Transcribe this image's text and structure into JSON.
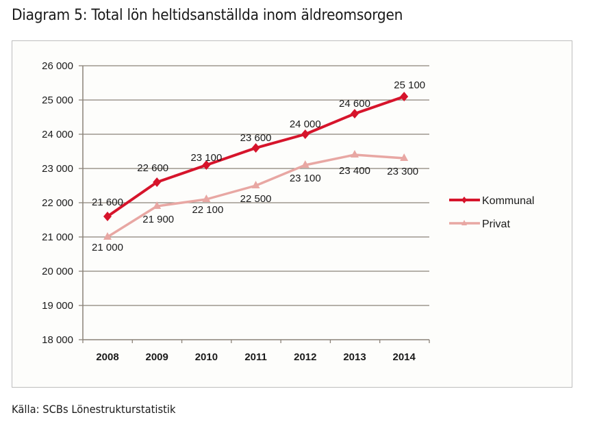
{
  "header": {
    "title": "Diagram 5: Total lön heltidsanställda inom äldreomsorgen"
  },
  "footer": {
    "source": "Källa: SCBs Lönestrukturstatistik"
  },
  "chart_data": {
    "type": "line",
    "title": "Diagram 5: Total lön heltidsanställda inom äldreomsorgen",
    "xlabel": "",
    "ylabel": "",
    "categories": [
      "2008",
      "2009",
      "2010",
      "2011",
      "2012",
      "2013",
      "2014"
    ],
    "ylim": [
      18000,
      26000
    ],
    "yticks": [
      18000,
      19000,
      20000,
      21000,
      22000,
      23000,
      24000,
      25000,
      26000
    ],
    "ytick_labels": [
      "18 000",
      "19 000",
      "20 000",
      "21 000",
      "22 000",
      "23 000",
      "24 000",
      "25 000",
      "26 000"
    ],
    "grid": true,
    "legend_position": "right",
    "series": [
      {
        "name": "Kommunal",
        "color": "#d6142b",
        "marker": "diamond",
        "values": [
          21600,
          22600,
          23100,
          23600,
          24000,
          24600,
          25100
        ],
        "labels": [
          "21 600",
          "22 600",
          "23 100",
          "23 600",
          "24 000",
          "24 600",
          "25 100"
        ]
      },
      {
        "name": "Privat",
        "color": "#e8a7a3",
        "marker": "triangle",
        "values": [
          21000,
          21900,
          22100,
          22500,
          23100,
          23400,
          23300
        ],
        "labels": [
          "21 000",
          "21 900",
          "22 100",
          "22 500",
          "23 100",
          "23 400",
          "23 300"
        ]
      }
    ],
    "source": "Källa: SCBs Lönestrukturstatistik"
  }
}
